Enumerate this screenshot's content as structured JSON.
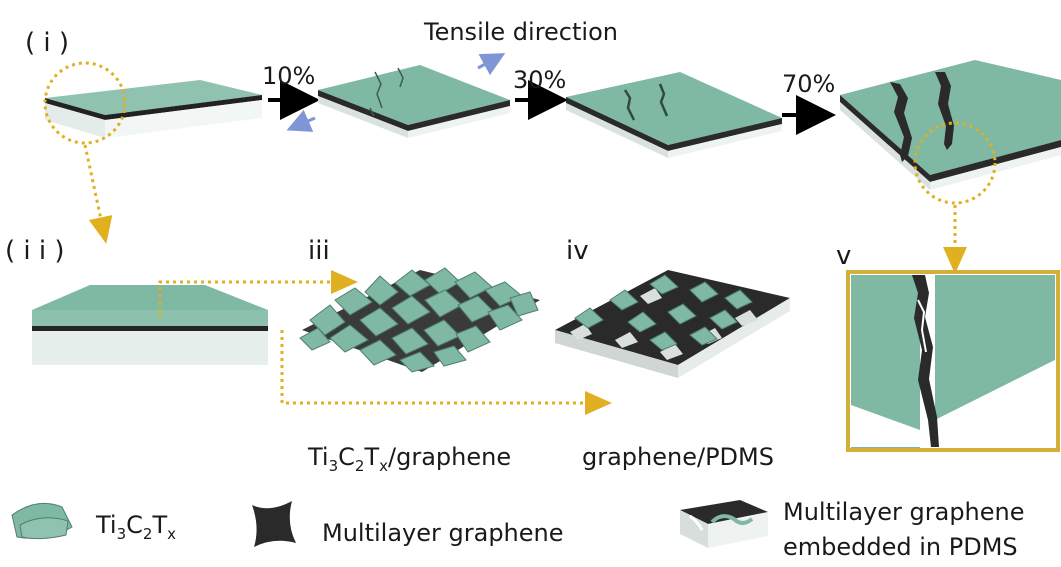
{
  "labels": {
    "panel_i": "( i )",
    "panel_ii": "( i i )",
    "panel_iii": "iii",
    "panel_iv": "iv",
    "panel_v": "v",
    "tensile_direction": "Tensile direction",
    "strain_10": "10%",
    "strain_30": "30%",
    "strain_70": "70%",
    "iii_caption": {
      "a": "Ti",
      "s1": "3",
      "b": "C",
      "s2": "2",
      "c": "T",
      "s3": "x",
      "d": "/graphene"
    },
    "iv_caption": "graphene/PDMS"
  },
  "legend": [
    {
      "name": "ti3c2tx-flake",
      "a": "Ti",
      "s1": "3",
      "b": "C",
      "s2": "2",
      "c": "T",
      "s3": "x"
    },
    {
      "name": "multilayer-graphene",
      "text": "Multilayer graphene"
    },
    {
      "name": "graphene-in-pdms",
      "line1": "Multilayer graphene",
      "line2": "embedded in PDMS"
    }
  ],
  "colors": {
    "mxene": "#7fb8a3",
    "mxene_dark": "#5f9a86",
    "graphene": "#2b2b2b",
    "pdms": "#e9efee",
    "dotted": "#e0b020",
    "arrow_black": "#000000",
    "arrow_blue": "#7f95d6",
    "frame": "#d4b03a"
  }
}
